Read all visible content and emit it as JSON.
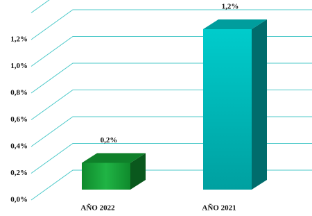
{
  "chart_data": {
    "type": "bar3d",
    "categories": [
      "AÑO 2022",
      "AÑO 2021"
    ],
    "values": [
      0.2,
      1.2
    ],
    "value_labels": [
      "0,2%",
      "1,2%"
    ],
    "colors": [
      "#13a035",
      "#00c4c4"
    ],
    "ylim": [
      0,
      1.4
    ],
    "yticks": [
      {
        "value": 0,
        "label": "0,0%"
      },
      {
        "value": 0.2,
        "label": "0,2%"
      },
      {
        "value": 0.4,
        "label": "0,4%"
      },
      {
        "value": 0.6,
        "label": "0,6%"
      },
      {
        "value": 0.8,
        "label": "0,8%"
      },
      {
        "value": 1.0,
        "label": "1,0%"
      },
      {
        "value": 1.2,
        "label": "1,2%"
      }
    ],
    "grid": true
  }
}
